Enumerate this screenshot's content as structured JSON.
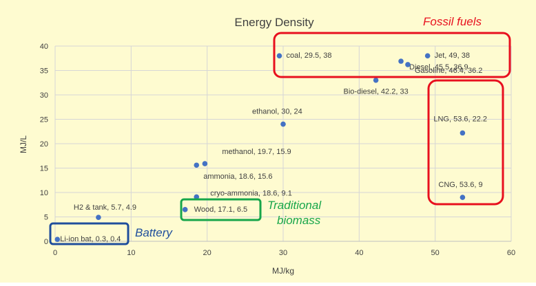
{
  "chart_data": {
    "type": "scatter",
    "title": "Energy Density",
    "xlabel": "MJ/kg",
    "ylabel": "MJ/L",
    "xlim": [
      0,
      60
    ],
    "ylim": [
      0,
      40
    ],
    "xticks": [
      "0",
      "10",
      "20",
      "30",
      "40",
      "50",
      "60"
    ],
    "yticks": [
      "0",
      "5",
      "10",
      "15",
      "20",
      "25",
      "30",
      "35",
      "40"
    ],
    "grid": true,
    "colors": {
      "background": "#fefbd0",
      "point": "#4472c4",
      "grid": "#d6d6d6",
      "text": "#404040"
    },
    "points": [
      {
        "x": 29.5,
        "y": 38,
        "label": "coal, 29.5, 38"
      },
      {
        "x": 49,
        "y": 38,
        "label": "Jet, 49, 38"
      },
      {
        "x": 45.5,
        "y": 36.9,
        "label": "Diesel, 45.5, 36.9"
      },
      {
        "x": 46.4,
        "y": 36.2,
        "label": "Gasoline, 46.4, 36.2"
      },
      {
        "x": 42.2,
        "y": 33,
        "label": "Bio-diesel, 42.2, 33"
      },
      {
        "x": 30,
        "y": 24,
        "label": "ethanol, 30, 24"
      },
      {
        "x": 53.6,
        "y": 22.2,
        "label": "LNG, 53.6, 22.2"
      },
      {
        "x": 19.7,
        "y": 15.9,
        "label": "methanol, 19.7, 15.9"
      },
      {
        "x": 18.6,
        "y": 15.6,
        "label": "ammonia, 18.6, 15.6"
      },
      {
        "x": 18.6,
        "y": 9.1,
        "label": "cryo-ammonia, 18.6, 9.1"
      },
      {
        "x": 53.6,
        "y": 9,
        "label": "CNG, 53.6, 9"
      },
      {
        "x": 17.1,
        "y": 6.5,
        "label": "Wood, 17.1,  6.5"
      },
      {
        "x": 5.7,
        "y": 4.9,
        "label": "H2 & tank, 5.7, 4.9"
      },
      {
        "x": 0.3,
        "y": 0.4,
        "label": "Li-ion bat, 0.3, 0.4"
      }
    ],
    "groups": [
      {
        "label": "Fossil fuels",
        "color": "#e8101e"
      },
      {
        "label": "Traditional biomass",
        "color": "#17a64a"
      },
      {
        "label": "Battery",
        "color": "#1f4e9c"
      }
    ]
  }
}
